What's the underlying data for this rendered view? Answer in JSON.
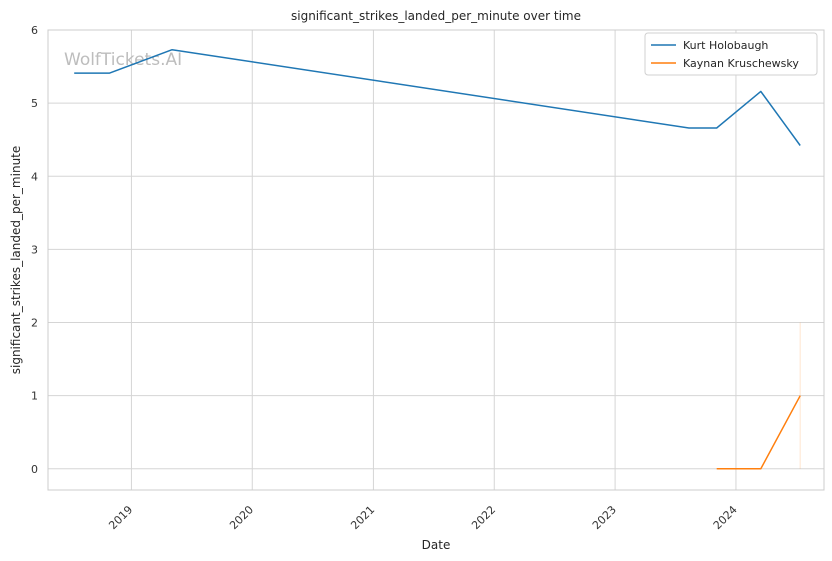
{
  "chart_data": {
    "type": "line",
    "title": "significant_strikes_landed_per_minute over time",
    "xlabel": "Date",
    "ylabel": "significant_strikes_landed_per_minute",
    "watermark": "WolfTickets.AI",
    "x_type": "date",
    "xlim": [
      "2018-04-24",
      "2024-09-23"
    ],
    "ylim": [
      -0.29,
      6.0
    ],
    "y_ticks": [
      0,
      1,
      2,
      3,
      4,
      5,
      6
    ],
    "x_ticks": [
      "2019-01-01",
      "2020-01-01",
      "2021-01-01",
      "2022-01-01",
      "2023-01-01",
      "2024-01-01"
    ],
    "x_tick_labels": [
      "2019",
      "2020",
      "2021",
      "2022",
      "2023",
      "2024"
    ],
    "grid": true,
    "legend_position": "top-right",
    "series": [
      {
        "name": "Kurt Holobaugh",
        "color": "#1f77b4",
        "points": [
          {
            "x": "2018-07-12",
            "y": 5.41
          },
          {
            "x": "2018-10-27",
            "y": 5.41
          },
          {
            "x": "2019-05-04",
            "y": 5.73
          },
          {
            "x": "2023-08-12",
            "y": 4.66
          },
          {
            "x": "2023-11-04",
            "y": 4.66
          },
          {
            "x": "2024-03-16",
            "y": 5.16
          },
          {
            "x": "2024-07-13",
            "y": 4.42
          }
        ]
      },
      {
        "name": "Kaynan Kruschewsky",
        "color": "#ff7f0e",
        "points": [
          {
            "x": "2023-11-04",
            "y": 0.0
          },
          {
            "x": "2024-03-16",
            "y": 0.0
          },
          {
            "x": "2024-07-13",
            "y": 1.0
          }
        ],
        "faint_range": {
          "x": "2024-07-13",
          "y0": 0.0,
          "y1": 2.0
        }
      }
    ]
  }
}
